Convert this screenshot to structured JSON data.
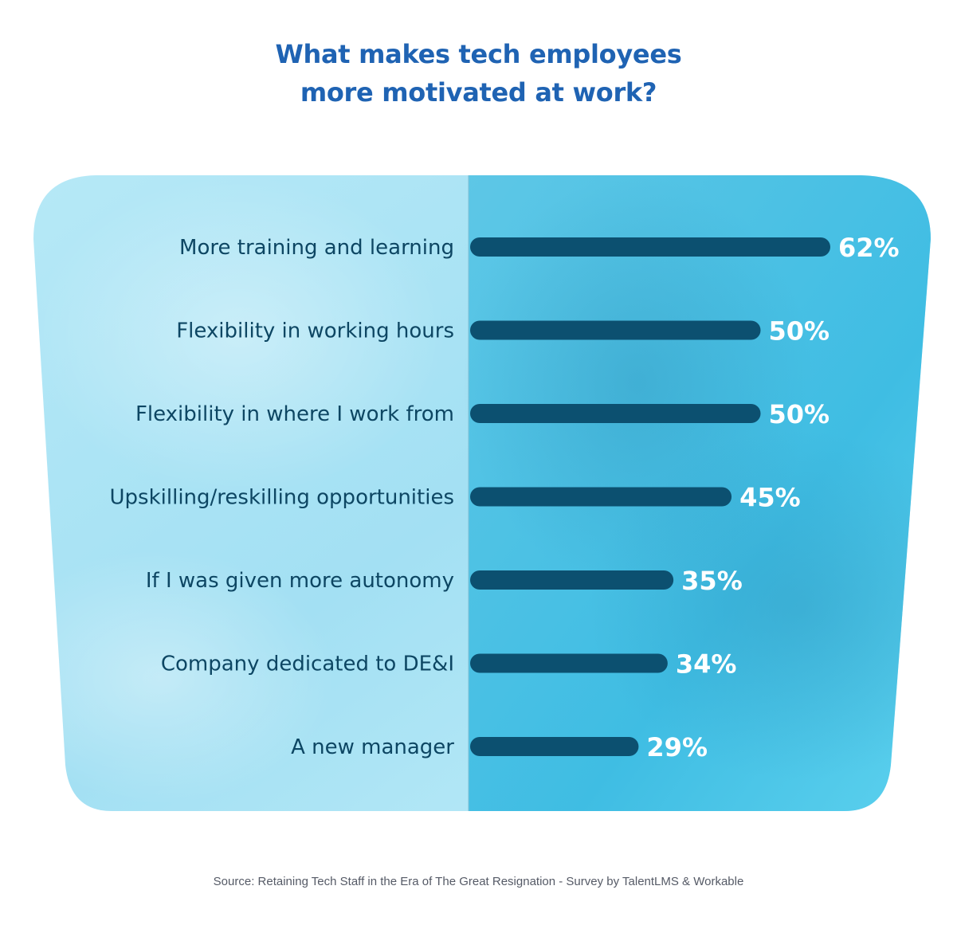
{
  "title_lines": [
    "What makes tech employees",
    "more motivated at work?"
  ],
  "source": "Source: Retaining Tech Staff in the Era of The Great Resignation - Survey by TalentLMS & Workable",
  "colors": {
    "title": "#1f63b3",
    "bar": "#0c5070",
    "label": "#0d4663",
    "value": "#ffffff",
    "panel_left": "#a9e4f5",
    "panel_right": "#3cc3e6",
    "source": "#555a66"
  },
  "chart_data": {
    "type": "bar",
    "orientation": "horizontal",
    "categories": [
      "More training and learning",
      "Flexibility in working hours",
      "Flexibility in where I work from",
      "Upskilling/reskilling opportunities",
      "If I was given more autonomy",
      "Company dedicated to DE&I",
      "A new manager"
    ],
    "values": [
      62,
      50,
      50,
      45,
      35,
      34,
      29
    ],
    "value_labels": [
      "62%",
      "50%",
      "50%",
      "45%",
      "35%",
      "34%",
      "29%"
    ],
    "unit": "%",
    "xlim": [
      0,
      62
    ],
    "grid": false,
    "legend": "none"
  }
}
